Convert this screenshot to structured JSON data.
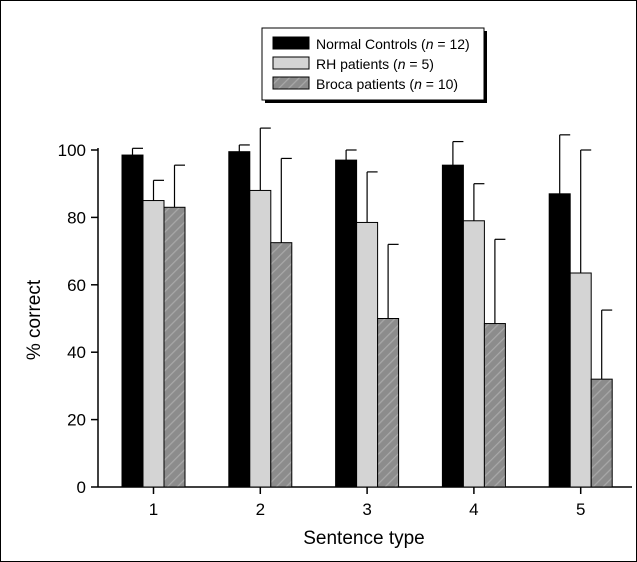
{
  "chart_data": {
    "type": "bar",
    "title": "",
    "xlabel": "Sentence type",
    "ylabel": "% correct",
    "ylim": [
      0,
      100
    ],
    "yticks": [
      0,
      20,
      40,
      60,
      80,
      100
    ],
    "categories": [
      "1",
      "2",
      "3",
      "4",
      "5"
    ],
    "legend_position": "top-center",
    "error_bars": "upper",
    "series": [
      {
        "name": "Normal Controls",
        "n_label": "n",
        "n_value": "12",
        "fill": "#000000",
        "pattern": "solid",
        "values": [
          98.5,
          99.5,
          97,
          95.5,
          87
        ],
        "errors": [
          2,
          2,
          3,
          7,
          17.5
        ]
      },
      {
        "name": "RH patients",
        "n_label": "n",
        "n_value": "5",
        "fill": "#d4d4d4",
        "pattern": "solid",
        "values": [
          85,
          88,
          78.5,
          79,
          63.5
        ],
        "errors": [
          6,
          18.5,
          15,
          11,
          36.5
        ]
      },
      {
        "name": "Broca patients",
        "n_label": "n",
        "n_value": "10",
        "fill": "#8c8c8c",
        "pattern": "hatched",
        "values": [
          83,
          72.5,
          50,
          48.5,
          32
        ],
        "errors": [
          12.5,
          25,
          22,
          25,
          20.5
        ]
      }
    ]
  }
}
